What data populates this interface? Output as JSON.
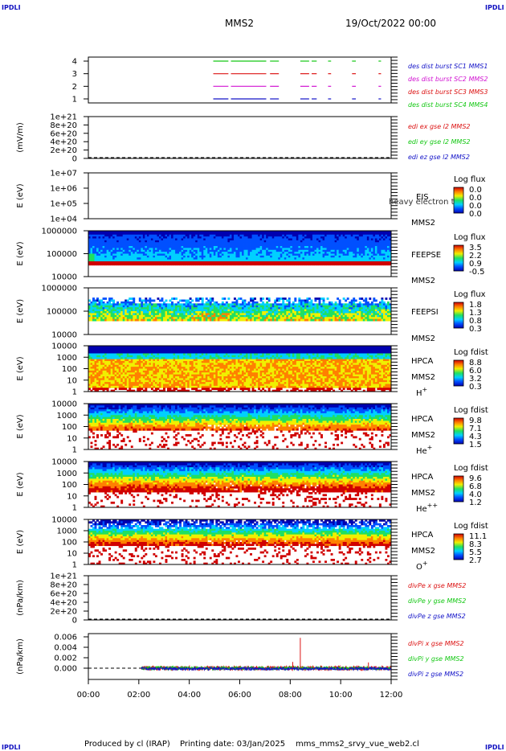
{
  "header": {
    "corner_tl": "IPDLI",
    "corner_tr": "IPDLI",
    "corner_bl": "IPDLI",
    "corner_br": "IPDLI",
    "spacecraft": "MMS2",
    "date": "19/Oct/2022 00:00"
  },
  "footer": {
    "producer": "Produced by cl (IRAP)",
    "printing": "Printing date: 03/Jan/2025",
    "file": "mms_mms2_srvy_vue_web2.cl"
  },
  "colors": {
    "blue": "#1414c8",
    "magenta": "#d214d2",
    "red": "#dc1414",
    "green": "#14c814",
    "cb_stops": [
      "#0000b0",
      "#0050ff",
      "#00d0ff",
      "#20e060",
      "#f0f000",
      "#ff8000",
      "#d00000"
    ]
  },
  "x_axis": {
    "range_hours": [
      0,
      12
    ],
    "ticks": [
      "00:00",
      "02:00",
      "04:00",
      "06:00",
      "08:00",
      "10:00",
      "12:00"
    ]
  },
  "chart_data": [
    {
      "id": "burst",
      "type": "timeline",
      "yticks": [
        "4",
        "3",
        "2",
        "1"
      ],
      "ylim": [
        0.5,
        4.5
      ],
      "ylabel": "",
      "legend": [
        {
          "text": "des dist burst SC1 MMS1",
          "color": "#1414c8"
        },
        {
          "text": "des dist burst SC2 MMS2",
          "color": "#d214d2"
        },
        {
          "text": "des dist burst SC3 MMS3",
          "color": "#dc1414"
        },
        {
          "text": "des dist burst SC4 MMS4",
          "color": "#14c814"
        }
      ],
      "tracks": [
        {
          "y": 4,
          "color": "#14c814",
          "segments": [
            [
              4.95,
              5.55
            ],
            [
              5.65,
              7.05
            ],
            [
              7.2,
              7.55
            ],
            [
              8.4,
              8.75
            ],
            [
              8.85,
              9.05
            ],
            [
              9.5,
              9.62
            ],
            [
              10.45,
              10.6
            ],
            [
              11.5,
              11.6
            ]
          ]
        },
        {
          "y": 3,
          "color": "#dc1414",
          "segments": [
            [
              4.95,
              5.55
            ],
            [
              5.65,
              7.05
            ],
            [
              7.2,
              7.55
            ],
            [
              8.4,
              8.75
            ],
            [
              8.85,
              9.05
            ],
            [
              9.5,
              9.62
            ],
            [
              10.45,
              10.6
            ],
            [
              11.5,
              11.6
            ]
          ]
        },
        {
          "y": 2,
          "color": "#d214d2",
          "segments": [
            [
              4.95,
              5.55
            ],
            [
              5.65,
              7.05
            ],
            [
              7.2,
              7.55
            ],
            [
              8.4,
              8.75
            ],
            [
              8.85,
              9.05
            ],
            [
              9.5,
              9.62
            ],
            [
              10.45,
              10.6
            ],
            [
              11.5,
              11.6
            ]
          ]
        },
        {
          "y": 1,
          "color": "#1414c8",
          "segments": [
            [
              4.95,
              5.55
            ],
            [
              5.65,
              7.05
            ],
            [
              7.2,
              7.55
            ],
            [
              8.4,
              8.75
            ],
            [
              8.85,
              9.05
            ],
            [
              9.5,
              9.62
            ],
            [
              10.45,
              10.6
            ],
            [
              11.5,
              11.6
            ]
          ]
        }
      ]
    },
    {
      "id": "edi",
      "type": "line",
      "yticks": [
        "1e+21",
        "8e+20",
        "6e+20",
        "4e+20",
        "2e+20",
        "0"
      ],
      "ylim": [
        0,
        1e+21
      ],
      "ylabel": "(mV/m)",
      "legend": [
        {
          "text": "edi ex gse l2 MMS2",
          "color": "#dc1414"
        },
        {
          "text": "edi ey gse l2 MMS2",
          "color": "#14c814"
        },
        {
          "text": "edi ez gse l2 MMS2",
          "color": "#1414c8"
        }
      ]
    },
    {
      "id": "eis",
      "type": "heatmap",
      "yticks": [
        "1e+07",
        "1e+06",
        "1e+05",
        "1e+04"
      ],
      "ylabel": "E (eV)",
      "instrument": "EIS",
      "spacecraft_label": "MMS2",
      "overlay": "heavy electron to",
      "cb_title": "Log flux",
      "cb_ticks": [
        "0.0",
        "0.0",
        "0.0",
        "0.0"
      ],
      "empty": true
    },
    {
      "id": "feepse",
      "type": "heatmap",
      "yticks": [
        "1000000",
        "100000",
        "10000"
      ],
      "ylabel": "E (eV)",
      "instrument": "FEEPSE",
      "spacecraft_label": "MMS2",
      "cb_title": "Log flux",
      "cb_ticks": [
        "3.5",
        "2.2",
        "0.9",
        "-0.5"
      ]
    },
    {
      "id": "feepsi",
      "type": "heatmap",
      "yticks": [
        "1000000",
        "100000",
        "10000"
      ],
      "ylabel": "E (eV)",
      "instrument": "FEEPSI",
      "spacecraft_label": "MMS2",
      "cb_title": "Log flux",
      "cb_ticks": [
        "1.8",
        "1.3",
        "0.8",
        "0.3"
      ]
    },
    {
      "id": "hpca_h",
      "type": "heatmap",
      "yticks": [
        "10000",
        "1000",
        "100",
        "10",
        "1"
      ],
      "ylabel": "E (eV)",
      "instrument": "HPCA",
      "spacecraft_label": "MMS2",
      "species": "H",
      "species_sup": "+",
      "cb_title": "Log fdist",
      "cb_ticks": [
        "8.8",
        "6.0",
        "3.2",
        "0.3"
      ]
    },
    {
      "id": "hpca_he1",
      "type": "heatmap",
      "yticks": [
        "10000",
        "1000",
        "100",
        "10",
        "1"
      ],
      "ylabel": "E (eV)",
      "instrument": "HPCA",
      "spacecraft_label": "MMS2",
      "species": "He",
      "species_sup": "+",
      "cb_title": "Log fdist",
      "cb_ticks": [
        "9.8",
        "7.1",
        "4.3",
        "1.5"
      ]
    },
    {
      "id": "hpca_he2",
      "type": "heatmap",
      "yticks": [
        "10000",
        "1000",
        "100",
        "10",
        "1"
      ],
      "ylabel": "E (eV)",
      "instrument": "HPCA",
      "spacecraft_label": "MMS2",
      "species": "He",
      "species_sup": "++",
      "cb_title": "Log fdist",
      "cb_ticks": [
        "9.6",
        "6.8",
        "4.0",
        "1.2"
      ]
    },
    {
      "id": "hpca_o",
      "type": "heatmap",
      "yticks": [
        "10000",
        "1000",
        "100",
        "10",
        "1"
      ],
      "ylabel": "E (eV)",
      "instrument": "HPCA",
      "spacecraft_label": "MMS2",
      "species": "O",
      "species_sup": "+",
      "cb_title": "Log fdist",
      "cb_ticks": [
        "11.1",
        "8.3",
        "5.5",
        "2.7"
      ]
    },
    {
      "id": "divpe",
      "type": "line",
      "yticks": [
        "1e+21",
        "8e+20",
        "6e+20",
        "4e+20",
        "2e+20",
        "0"
      ],
      "ylim": [
        0,
        1e+21
      ],
      "ylabel": "(nPa/km)",
      "legend": [
        {
          "text": "divPe x gse MMS2",
          "color": "#dc1414"
        },
        {
          "text": "divPe y gse MMS2",
          "color": "#14c814"
        },
        {
          "text": "divPe z gse MMS2",
          "color": "#1414c8"
        }
      ]
    },
    {
      "id": "divpi",
      "type": "line",
      "yticks": [
        "0.006",
        "0.004",
        "0.002",
        "0.000"
      ],
      "ylim": [
        -0.0003,
        0.0068
      ],
      "ylabel": "(nPa/km)",
      "legend": [
        {
          "text": "divPi x gse MMS2",
          "color": "#dc1414"
        },
        {
          "text": "divPi y gse MMS2",
          "color": "#14c814"
        },
        {
          "text": "divPi z gse MMS2",
          "color": "#1414c8"
        }
      ],
      "data_start_hour": 2.1,
      "spikes": [
        {
          "x": 8.4,
          "y": 0.0058,
          "color": "#dc1414"
        },
        {
          "x": 8.1,
          "y": 0.0012,
          "color": "#dc1414"
        },
        {
          "x": 11.1,
          "y": 0.0011,
          "color": "#dc1414"
        }
      ]
    }
  ]
}
